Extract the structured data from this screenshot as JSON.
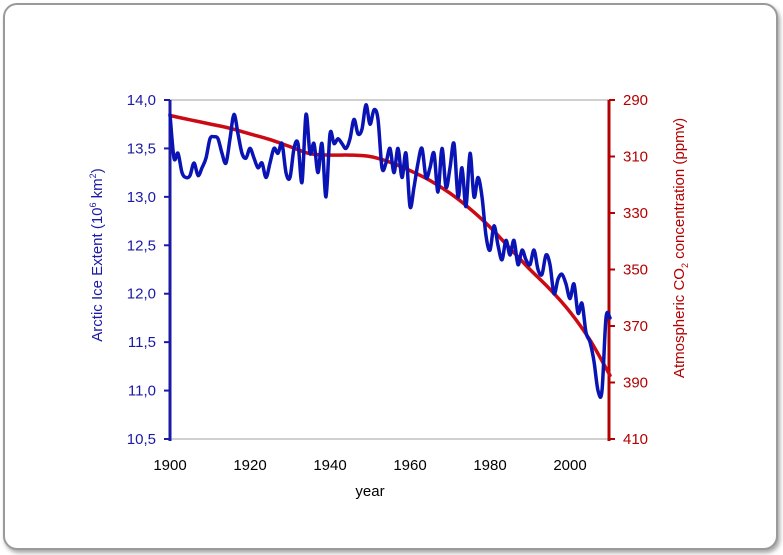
{
  "chart_data": {
    "type": "line",
    "xlabel": "year",
    "ylabel_left": {
      "prefix": "Arctic Ice Extent (10",
      "sup": "6",
      "mid": " km",
      "sup2": "2",
      "suffix": ")"
    },
    "ylabel_right": {
      "prefix": "Atmospheric CO",
      "sub": "2",
      "suffix": " concentration (ppmv)"
    },
    "xlim": [
      1900,
      2010
    ],
    "ylim_left": [
      10.5,
      14.0
    ],
    "ylim_right": [
      410,
      290
    ],
    "x_ticks": [
      "1900",
      "1920",
      "1940",
      "1960",
      "1980",
      "2000"
    ],
    "y_left_ticks": [
      "14,0",
      "13,5",
      "13,0",
      "12,5",
      "12,0",
      "11,5",
      "11,0",
      "10,5"
    ],
    "y_right_ticks": [
      "290",
      "310",
      "330",
      "350",
      "370",
      "390",
      "410"
    ],
    "colors": {
      "ice": "#0a14b4",
      "co2": "#cc0a14",
      "left_axis": "#1a1aa6",
      "right_axis": "#b30000"
    },
    "series": [
      {
        "axis": "left",
        "x": [
          1900,
          1901,
          1902,
          1903,
          1904,
          1905,
          1906,
          1907,
          1908,
          1909,
          1910,
          1911,
          1912,
          1913,
          1914,
          1915,
          1916,
          1917,
          1918,
          1919,
          1920,
          1921,
          1922,
          1923,
          1924,
          1925,
          1926,
          1927,
          1928,
          1929,
          1930,
          1931,
          1932,
          1933,
          1934,
          1935,
          1936,
          1937,
          1938,
          1939,
          1940,
          1941,
          1942,
          1943,
          1944,
          1945,
          1946,
          1947,
          1948,
          1949,
          1950,
          1951,
          1952,
          1953,
          1954,
          1955,
          1956,
          1957,
          1958,
          1959,
          1960,
          1961,
          1962,
          1963,
          1964,
          1965,
          1966,
          1967,
          1968,
          1969,
          1970,
          1971,
          1972,
          1973,
          1974,
          1975,
          1976,
          1977,
          1978,
          1979,
          1980,
          1981,
          1982,
          1983,
          1984,
          1985,
          1986,
          1987,
          1988,
          1989,
          1990,
          1991,
          1992,
          1993,
          1994,
          1995,
          1996,
          1997,
          1998,
          1999,
          2000,
          2001,
          2002,
          2003,
          2004,
          2005,
          2006,
          2007,
          2008,
          2009,
          2010
        ],
        "values": [
          13.85,
          13.4,
          13.45,
          13.25,
          13.2,
          13.22,
          13.35,
          13.22,
          13.3,
          13.4,
          13.6,
          13.62,
          13.6,
          13.45,
          13.35,
          13.6,
          13.85,
          13.65,
          13.45,
          13.4,
          13.5,
          13.4,
          13.3,
          13.35,
          13.2,
          13.35,
          13.5,
          13.45,
          13.55,
          13.25,
          13.2,
          13.5,
          13.55,
          13.15,
          13.85,
          13.45,
          13.55,
          13.25,
          13.55,
          13.0,
          13.65,
          13.55,
          13.6,
          13.55,
          13.5,
          13.6,
          13.8,
          13.65,
          13.7,
          13.95,
          13.75,
          13.9,
          13.8,
          13.3,
          13.35,
          13.5,
          13.25,
          13.5,
          13.2,
          13.45,
          12.9,
          13.1,
          13.35,
          13.5,
          13.2,
          13.3,
          13.45,
          13.05,
          13.5,
          13.1,
          13.3,
          13.55,
          13.0,
          13.3,
          12.9,
          13.45,
          13.0,
          13.2,
          13.0,
          12.6,
          12.45,
          12.7,
          12.5,
          12.35,
          12.55,
          12.4,
          12.55,
          12.3,
          12.45,
          12.35,
          12.3,
          12.45,
          12.25,
          12.2,
          12.4,
          12.3,
          12.0,
          12.15,
          12.2,
          12.1,
          11.95,
          12.1,
          11.8,
          11.9,
          11.6,
          11.5,
          11.3,
          11.0,
          11.0,
          11.75,
          11.75
        ]
      },
      {
        "axis": "right",
        "x": [
          1900,
          1905,
          1910,
          1915,
          1920,
          1925,
          1930,
          1935,
          1940,
          1945,
          1950,
          1955,
          1960,
          1965,
          1970,
          1975,
          1980,
          1985,
          1990,
          1995,
          2000,
          2005,
          2010
        ],
        "values": [
          295.5,
          297,
          298.5,
          300,
          302,
          304,
          306.5,
          309,
          309.5,
          309.5,
          310,
          312,
          315,
          318.5,
          323,
          328.5,
          335,
          342.5,
          350,
          357,
          365,
          375,
          387.5
        ]
      }
    ]
  }
}
